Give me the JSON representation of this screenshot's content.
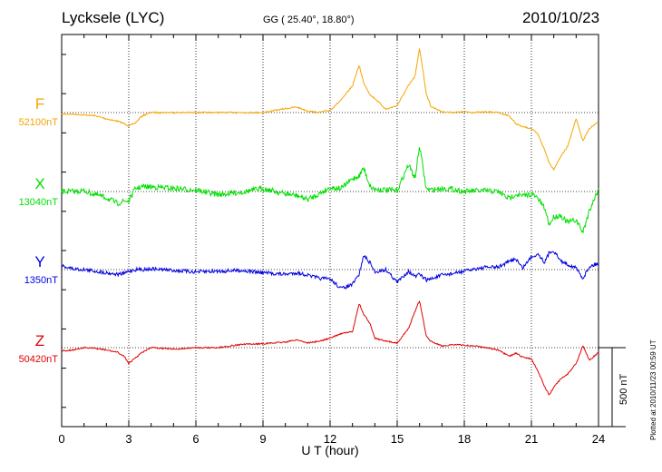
{
  "header": {
    "station": "Lycksele (LYC)",
    "coords": "GG ( 25.40°,  18.80°)",
    "date": "2010/10/23"
  },
  "footer": {
    "plotted": "Plotted at 2010/11/23 00:59 UT"
  },
  "colors": {
    "F": "#f5a500",
    "X": "#00e000",
    "Y": "#0000e0",
    "Z": "#e00000"
  },
  "chart_data": {
    "type": "line",
    "title": "Lycksele (LYC)",
    "xlabel": "U T (hour)",
    "xlim": [
      0,
      24
    ],
    "x_ticks": [
      "0",
      "3",
      "6",
      "9",
      "12",
      "15",
      "18",
      "21",
      "24"
    ],
    "grid": true,
    "scale_bar": "500 nT",
    "scale_bar_nT": 500,
    "x": [
      0,
      0.5,
      1,
      1.5,
      2,
      2.5,
      2.8,
      3,
      3.3,
      3.6,
      4,
      5,
      6,
      7,
      8,
      9,
      10,
      10.5,
      11,
      11.5,
      12,
      12.5,
      13,
      13.3,
      13.5,
      13.8,
      14,
      14.5,
      15,
      15.5,
      15.8,
      16,
      16.3,
      16.5,
      17,
      17.5,
      18,
      18.5,
      19,
      19.5,
      20,
      20.3,
      20.6,
      21,
      21.3,
      21.6,
      21.8,
      22,
      22.3,
      22.6,
      23,
      23.3,
      23.6,
      24
    ],
    "series": [
      {
        "name": "F",
        "baseline": "52100nT",
        "values": [
          -10,
          -10,
          -15,
          -20,
          -40,
          -55,
          -70,
          -85,
          -65,
          -20,
          0,
          0,
          0,
          0,
          0,
          0,
          25,
          35,
          10,
          0,
          15,
          80,
          170,
          300,
          190,
          110,
          90,
          20,
          45,
          170,
          230,
          410,
          120,
          40,
          5,
          0,
          5,
          0,
          5,
          0,
          -20,
          -70,
          -90,
          -100,
          -140,
          -240,
          -320,
          -360,
          -280,
          -220,
          -40,
          -180,
          -100,
          -60
        ]
      },
      {
        "name": "X",
        "baseline": "13040nT",
        "values": [
          0,
          0,
          5,
          -20,
          -40,
          -75,
          -60,
          -60,
          20,
          30,
          30,
          20,
          10,
          -20,
          -5,
          20,
          -15,
          -25,
          -50,
          -15,
          25,
          20,
          80,
          100,
          150,
          30,
          15,
          10,
          5,
          170,
          85,
          290,
          15,
          10,
          20,
          15,
          0,
          5,
          5,
          0,
          -45,
          -15,
          -30,
          -15,
          -45,
          -110,
          -210,
          -160,
          -150,
          -195,
          -180,
          -260,
          -115,
          15
        ]
      },
      {
        "name": "Y",
        "baseline": "1350nT",
        "values": [
          25,
          5,
          0,
          -10,
          -20,
          -30,
          -25,
          -10,
          0,
          0,
          5,
          -5,
          -15,
          -10,
          -5,
          -20,
          -30,
          -20,
          -35,
          -55,
          -60,
          -120,
          -95,
          -30,
          90,
          40,
          -15,
          0,
          -80,
          -10,
          -45,
          -30,
          -65,
          -60,
          -35,
          -25,
          -10,
          5,
          15,
          15,
          50,
          70,
          10,
          80,
          100,
          45,
          110,
          120,
          55,
          35,
          10,
          -55,
          20,
          40
        ]
      },
      {
        "name": "Z",
        "baseline": "50420nT",
        "values": [
          -20,
          -15,
          0,
          -5,
          -15,
          -30,
          -55,
          -100,
          -65,
          -30,
          0,
          -10,
          0,
          0,
          20,
          25,
          35,
          50,
          30,
          40,
          60,
          90,
          100,
          280,
          210,
          150,
          60,
          40,
          30,
          120,
          230,
          300,
          70,
          40,
          10,
          20,
          15,
          10,
          0,
          -15,
          -55,
          -35,
          -60,
          -70,
          -150,
          -250,
          -300,
          -250,
          -200,
          -170,
          -100,
          10,
          -80,
          -30
        ]
      }
    ]
  }
}
